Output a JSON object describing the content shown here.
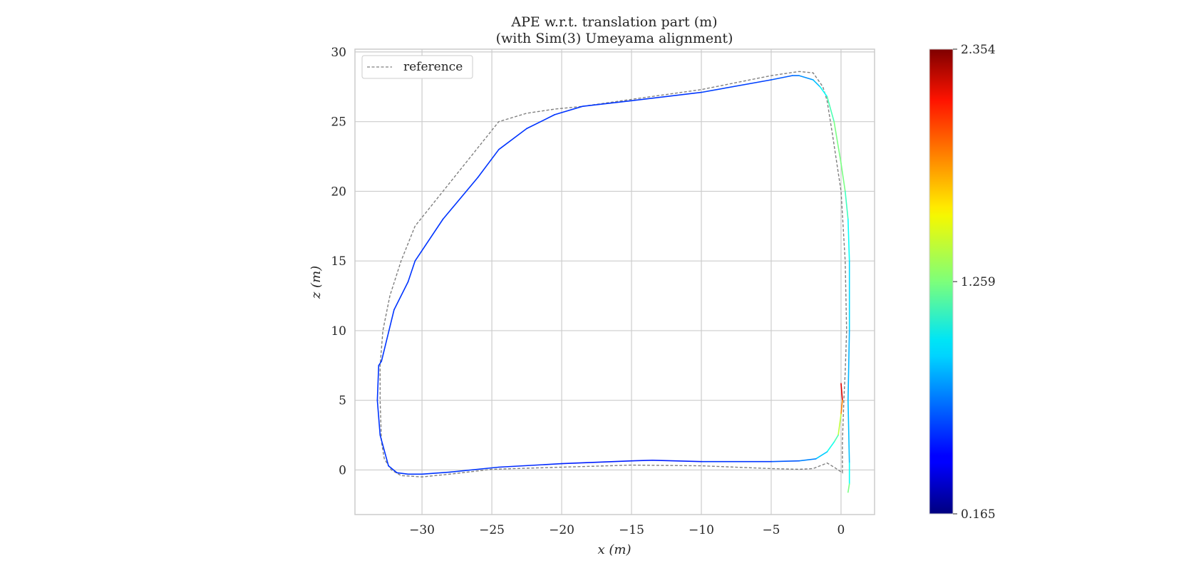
{
  "chart_data": {
    "type": "line",
    "title_line1": "APE w.r.t. translation part (m)",
    "title_line2": "(with Sim(3) Umeyama alignment)",
    "xlabel": "x (m)",
    "ylabel": "z (m)",
    "xlim": [
      -34.8,
      2.4
    ],
    "ylim": [
      -3.2,
      30.2
    ],
    "xticks": [
      -30,
      -25,
      -20,
      -15,
      -10,
      -5,
      0
    ],
    "yticks": [
      0,
      5,
      10,
      15,
      20,
      25,
      30
    ],
    "grid": true,
    "legend": {
      "position": "top-left",
      "entries": [
        {
          "label": "reference",
          "style": "dashed",
          "color": "#808080"
        }
      ]
    },
    "series": [
      {
        "name": "reference",
        "style": "dashed",
        "color": "#808080",
        "x": [
          0.1,
          0.1,
          -0.2,
          -0.5,
          -1.0,
          -2.0,
          -3.0,
          -5.0,
          -10.0,
          -15.0,
          -20.0,
          -25.0,
          -28.0,
          -30.0,
          -31.5,
          -32.2,
          -32.7,
          -32.9,
          -33.0,
          -33.0,
          -32.8,
          -32.3,
          -31.5,
          -30.5,
          -28.5,
          -26.5,
          -24.5,
          -22.5,
          -20.5,
          -18.5,
          -15.0,
          -10.0,
          -5.0,
          -3.0,
          -2.0,
          -1.3,
          -1.0,
          -0.6,
          -0.3,
          0.0,
          0.3,
          0.4,
          0.3,
          0.2,
          0.1,
          0.1
        ],
        "y": [
          0.0,
          -0.2,
          0.0,
          0.2,
          0.5,
          0.1,
          0.05,
          0.1,
          0.3,
          0.35,
          0.2,
          0.05,
          -0.3,
          -0.5,
          -0.4,
          0.0,
          0.8,
          2.0,
          5.0,
          7.5,
          10.0,
          12.5,
          15.0,
          17.5,
          20.0,
          22.5,
          25.0,
          25.6,
          25.9,
          26.1,
          26.6,
          27.3,
          28.3,
          28.6,
          28.5,
          27.5,
          26.5,
          24.0,
          22.0,
          20.0,
          15.0,
          10.0,
          7.0,
          5.0,
          2.0,
          0.0
        ]
      },
      {
        "name": "",
        "style": "solid",
        "x": [
          0.0,
          0.1,
          0.0,
          -0.2,
          -0.5,
          -1.0,
          -1.8,
          -3.0,
          -5.0,
          -10.0,
          -13.5,
          -15.0,
          -20.0,
          -24.5,
          -28.0,
          -30.0,
          -31.0,
          -31.8,
          -32.4,
          -33.0,
          -33.2,
          -33.1,
          -32.9,
          -32.0,
          -31.0,
          -30.5,
          -28.5,
          -26.0,
          -24.5,
          -22.5,
          -20.5,
          -18.5,
          -15.0,
          -10.0,
          -5.0,
          -3.5,
          -3.0,
          -2.0,
          -1.5,
          -1.0,
          -0.5,
          0.0,
          0.3,
          0.5,
          0.6,
          0.6,
          0.5,
          0.6,
          0.6,
          0.5
        ],
        "y": [
          6.2,
          5.0,
          4.0,
          2.5,
          2.0,
          1.3,
          0.8,
          0.65,
          0.6,
          0.6,
          0.7,
          0.65,
          0.45,
          0.2,
          -0.15,
          -0.3,
          -0.3,
          -0.2,
          0.3,
          2.5,
          5.0,
          7.5,
          7.8,
          11.5,
          13.5,
          15.0,
          18.0,
          21.0,
          23.0,
          24.5,
          25.5,
          26.1,
          26.5,
          27.1,
          28.0,
          28.3,
          28.3,
          28.0,
          27.5,
          26.8,
          25.0,
          22.0,
          20.0,
          18.0,
          15.0,
          10.0,
          5.0,
          0.5,
          -1.0,
          -1.6
        ],
        "ape": [
          2.3,
          2.0,
          1.6,
          1.2,
          1.1,
          0.95,
          0.8,
          0.65,
          0.6,
          0.5,
          0.5,
          0.5,
          0.5,
          0.55,
          0.55,
          0.55,
          0.55,
          0.55,
          0.55,
          0.55,
          0.55,
          0.55,
          0.55,
          0.55,
          0.55,
          0.55,
          0.55,
          0.55,
          0.55,
          0.55,
          0.55,
          0.55,
          0.55,
          0.55,
          0.6,
          0.65,
          0.7,
          0.8,
          0.9,
          1.1,
          1.2,
          1.3,
          1.2,
          1.05,
          0.95,
          0.85,
          0.8,
          0.9,
          1.1,
          1.4
        ]
      }
    ],
    "colorbar": {
      "colormap": "jet",
      "min": 0.165,
      "max": 2.354,
      "tick_labels": [
        "0.165",
        "1.259",
        "2.354"
      ],
      "tick_values": [
        0.165,
        1.259,
        2.354
      ]
    }
  }
}
